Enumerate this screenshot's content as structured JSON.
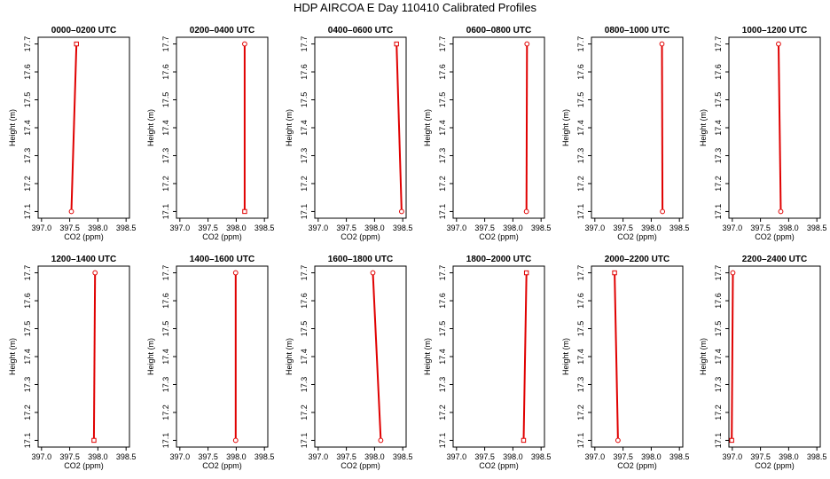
{
  "title": "HDP AIRCOA E  Day 110410  Calibrated Profiles",
  "chart_data": {
    "type": "line",
    "xlabel": "CO2 (ppm)",
    "ylabel": "Height (m)",
    "xlim": [
      397.0,
      398.5
    ],
    "ylim": [
      17.1,
      17.7
    ],
    "x_ticks": [
      "397.0",
      "397.5",
      "398.0",
      "398.5"
    ],
    "y_ticks": [
      "17.1",
      "17.2",
      "17.3",
      "17.4",
      "17.5",
      "17.6",
      "17.7"
    ],
    "line_color": "#e00000",
    "panels": [
      {
        "title": "0000–0200 UTC",
        "points": [
          [
            397.53,
            17.1
          ],
          [
            397.62,
            17.7
          ]
        ],
        "markers": [
          "circle",
          "square"
        ]
      },
      {
        "title": "0200–0400 UTC",
        "points": [
          [
            398.15,
            17.1
          ],
          [
            398.15,
            17.7
          ]
        ],
        "markers": [
          "square",
          "circle"
        ]
      },
      {
        "title": "0400–0600 UTC",
        "points": [
          [
            398.48,
            17.1
          ],
          [
            398.39,
            17.7
          ]
        ],
        "markers": [
          "circle",
          "square"
        ]
      },
      {
        "title": "0600–0800 UTC",
        "points": [
          [
            398.24,
            17.1
          ],
          [
            398.25,
            17.7
          ]
        ],
        "markers": [
          "circle",
          "circle"
        ]
      },
      {
        "title": "0800–1000 UTC",
        "points": [
          [
            398.2,
            17.1
          ],
          [
            398.19,
            17.7
          ]
        ],
        "markers": [
          "circle",
          "circle"
        ]
      },
      {
        "title": "1000–1200 UTC",
        "points": [
          [
            397.86,
            17.1
          ],
          [
            397.82,
            17.7
          ]
        ],
        "markers": [
          "circle",
          "circle"
        ]
      },
      {
        "title": "1200–1400 UTC",
        "points": [
          [
            397.93,
            17.1
          ],
          [
            397.95,
            17.7
          ]
        ],
        "markers": [
          "square",
          "circle"
        ]
      },
      {
        "title": "1400–1600 UTC",
        "points": [
          [
            397.99,
            17.1
          ],
          [
            397.99,
            17.7
          ]
        ],
        "markers": [
          "circle",
          "circle"
        ]
      },
      {
        "title": "1600–1800 UTC",
        "points": [
          [
            398.11,
            17.1
          ],
          [
            397.97,
            17.7
          ]
        ],
        "markers": [
          "circle",
          "circle"
        ]
      },
      {
        "title": "1800–2000 UTC",
        "points": [
          [
            398.19,
            17.1
          ],
          [
            398.24,
            17.7
          ]
        ],
        "markers": [
          "square",
          "square"
        ]
      },
      {
        "title": "2000–2200 UTC",
        "points": [
          [
            397.41,
            17.1
          ],
          [
            397.35,
            17.7
          ]
        ],
        "markers": [
          "circle",
          "square"
        ]
      },
      {
        "title": "2200–2400 UTC",
        "points": [
          [
            396.99,
            17.1
          ],
          [
            397.01,
            17.7
          ]
        ],
        "markers": [
          "square",
          "circle"
        ]
      }
    ]
  }
}
